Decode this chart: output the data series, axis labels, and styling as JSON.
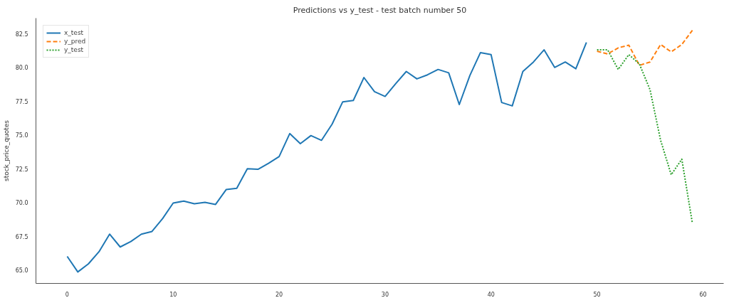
{
  "chart_data": {
    "type": "line",
    "title": "Predictions vs y_test - test batch number 50",
    "ylabel": "stock_price_quotes",
    "xlim": [
      -2.95,
      61.95
    ],
    "ylim": [
      64.0,
      83.65
    ],
    "xticks": [
      0,
      10,
      20,
      30,
      40,
      50,
      60
    ],
    "yticks": [
      {
        "value": 65,
        "label": "65.0"
      },
      67.5,
      {
        "value": 70,
        "label": "70.0"
      },
      72.5,
      {
        "value": 75,
        "label": "75.0"
      },
      77.5,
      {
        "value": 80,
        "label": "80.0"
      },
      82.5
    ],
    "grid": false,
    "legend": "top left",
    "series": [
      {
        "name": "x_test",
        "color": "#1f77b4",
        "line_style": "solid",
        "x": [
          0,
          1,
          2,
          3,
          4,
          5,
          6,
          7,
          8,
          9,
          10,
          11,
          12,
          13,
          14,
          15,
          16,
          17,
          18,
          19,
          20,
          21,
          22,
          23,
          24,
          25,
          26,
          27,
          28,
          29,
          30,
          31,
          32,
          33,
          34,
          35,
          36,
          37,
          38,
          39,
          40,
          41,
          42,
          43,
          44,
          45,
          46,
          47,
          48,
          49
        ],
        "values": [
          66.0,
          64.85,
          65.45,
          66.35,
          67.65,
          66.7,
          67.1,
          67.65,
          67.85,
          68.8,
          69.95,
          70.1,
          69.9,
          70.0,
          69.85,
          70.95,
          71.05,
          72.5,
          72.45,
          72.9,
          73.4,
          75.1,
          74.35,
          74.95,
          74.6,
          75.8,
          77.45,
          77.55,
          79.25,
          78.2,
          77.85,
          78.8,
          79.7,
          79.15,
          79.45,
          79.85,
          79.6,
          77.25,
          79.4,
          81.1,
          80.95,
          77.4,
          77.15,
          79.7,
          80.4,
          81.3,
          80.0,
          80.4,
          79.9,
          81.85
        ]
      },
      {
        "name": "y_pred",
        "color": "#ff7f0e",
        "line_style": "dashed",
        "x": [
          50,
          51,
          52,
          53,
          54,
          55,
          56,
          57,
          58,
          59
        ],
        "values": [
          81.2,
          81.0,
          81.45,
          81.65,
          80.15,
          80.4,
          81.7,
          81.15,
          81.7,
          82.75
        ]
      },
      {
        "name": "y_test",
        "color": "#2ca02c",
        "line_style": "dotted",
        "x": [
          50,
          51,
          52,
          53,
          54,
          55,
          56,
          57,
          58,
          59
        ],
        "values": [
          81.3,
          81.3,
          79.85,
          80.95,
          80.25,
          78.35,
          74.6,
          72.05,
          73.2,
          68.45
        ]
      }
    ]
  }
}
